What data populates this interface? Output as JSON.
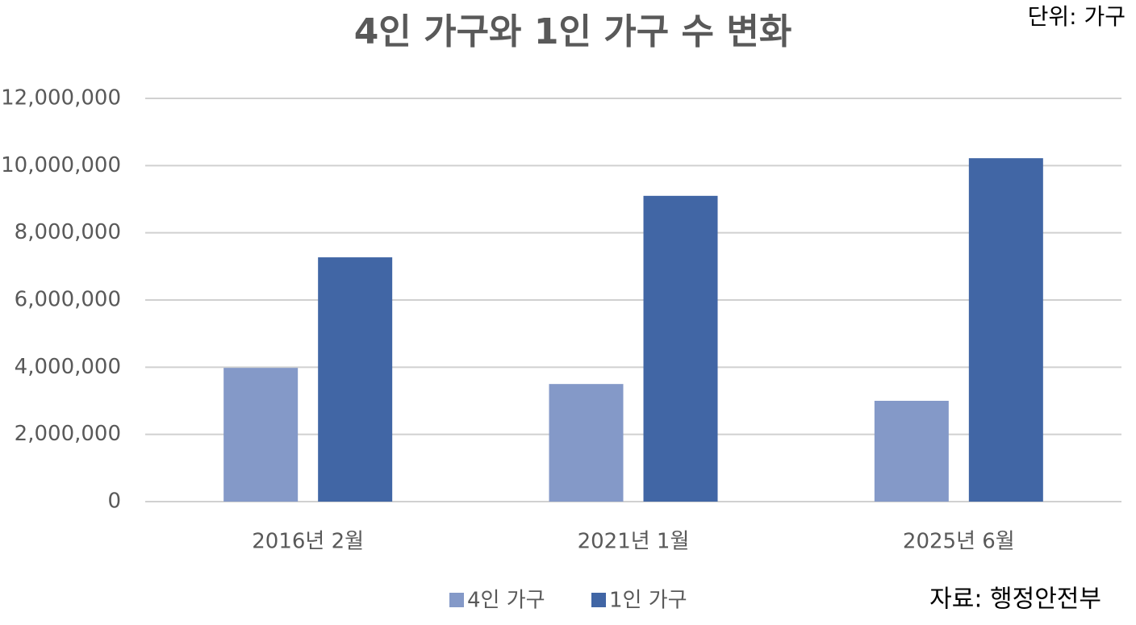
{
  "chart_data": {
    "type": "bar",
    "title": "4인 가구와 1인 가구 수 변화",
    "unit": "단위: 가구",
    "source": "자료: 행정안전부",
    "categories": [
      "2016년 2월",
      "2021년 1월",
      "2025년 6월"
    ],
    "series": [
      {
        "name": "4인 가구",
        "color": "#8499c8",
        "values": [
          3980000,
          3500000,
          3000000
        ]
      },
      {
        "name": "1인 가구",
        "color": "#4166a5",
        "values": [
          7270000,
          9100000,
          10220000
        ]
      }
    ],
    "ylim": [
      0,
      12000000
    ],
    "yticks": [
      0,
      {
        "value": 2000000,
        "label": "2,000,000"
      },
      {
        "value": 4000000,
        "label": "4,000,000"
      },
      {
        "value": 6000000,
        "label": "6,000,000"
      },
      {
        "value": 8000000,
        "label": "8,000,000"
      },
      {
        "value": 10000000,
        "label": "10,000,000"
      },
      {
        "value": 12000000,
        "label": "12,000,000"
      }
    ],
    "grid": true,
    "legend": "bottom"
  }
}
